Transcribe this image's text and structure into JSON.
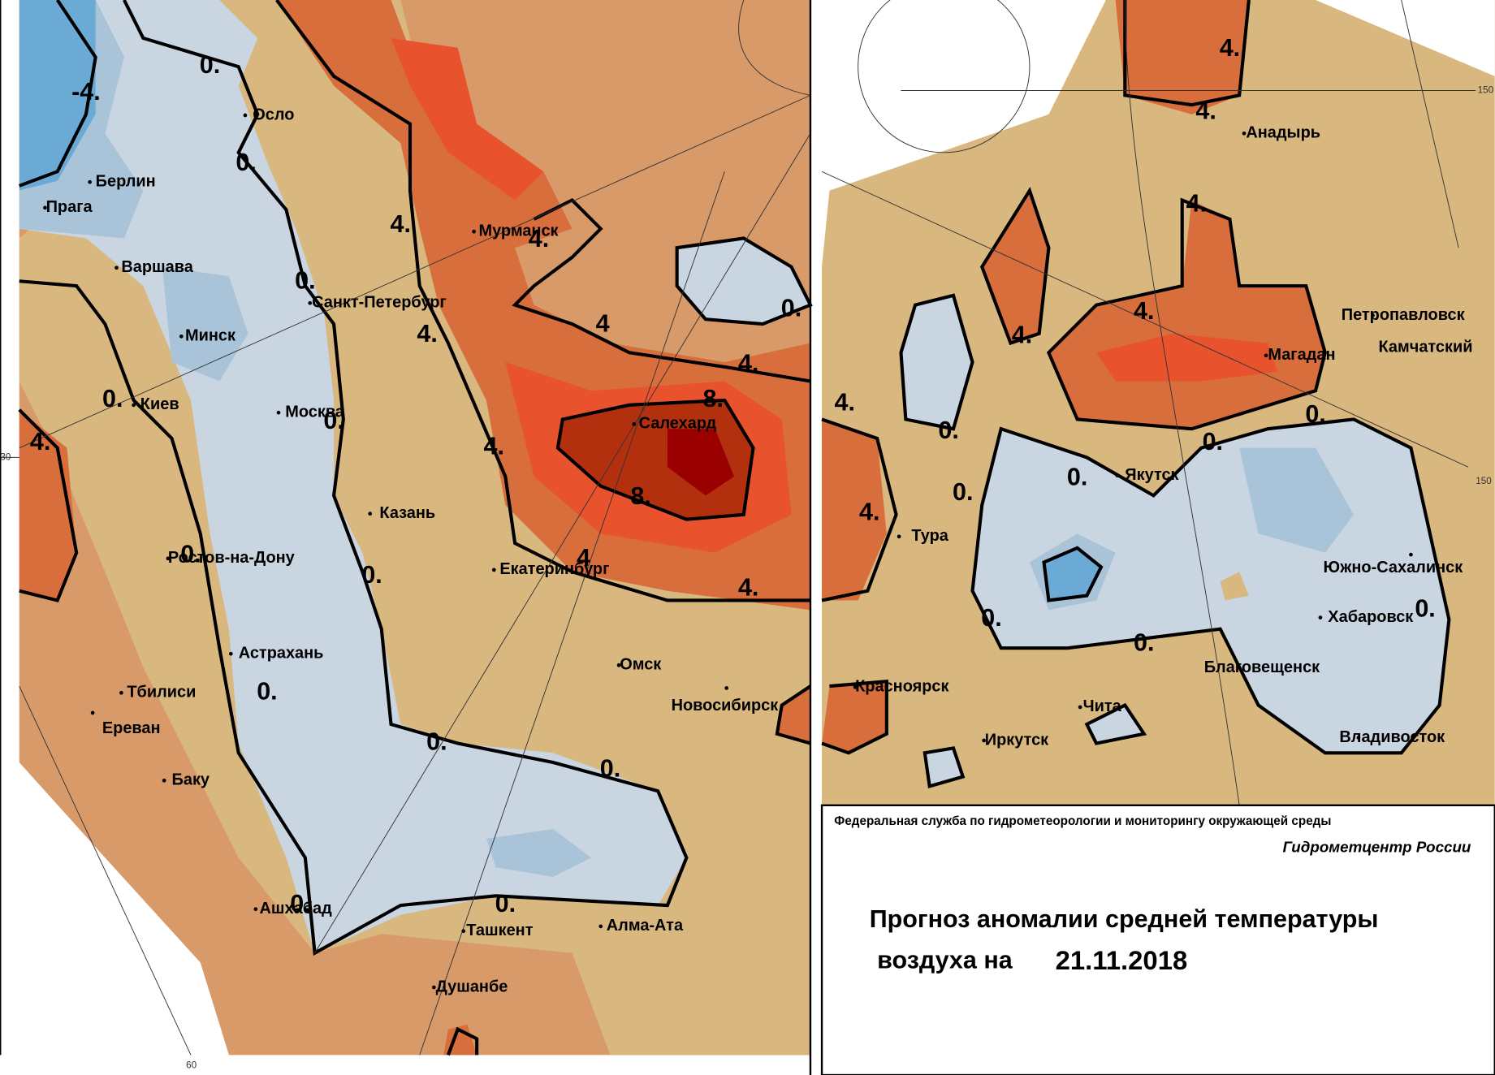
{
  "cities": [
    "Осло",
    "Берлин",
    "Прага",
    "Варшава",
    "Минск",
    "Киев",
    "Москва",
    "Санкт-Петербург",
    "Мурманск",
    "Салехард",
    "Казань",
    "Ростов-на-Дону",
    "Екатеринбург",
    "Омск",
    "Новосибирск",
    "Астрахань",
    "Тбилиси",
    "Ереван",
    "Баку",
    "Ашхабад",
    "Ташкент",
    "Алма-Ата",
    "Душанбе",
    "Анадырь",
    "Петропавловск",
    "Камчатский",
    "Магадан",
    "Якутск",
    "Тура",
    "Южно-Сахалинск",
    "Хабаровск",
    "Благовещенск",
    "Красноярск",
    "Чита",
    "Иркутск",
    "Владивосток"
  ],
  "contour_labels": [
    "-4.",
    "0.",
    "0.",
    "4.",
    "0.",
    "4.",
    "4.",
    "4",
    "4.",
    "0.",
    "8.",
    "8.",
    "0.",
    "0.",
    "4.",
    "4.",
    "0.",
    "4",
    "4.",
    "0.",
    "0.",
    "0.",
    "0.",
    "0.",
    "0.",
    "4.",
    "4.",
    "4.",
    "4.",
    "4.",
    "0.",
    "0.",
    "0.",
    "0.",
    "0.",
    "4.",
    "4.",
    "0.",
    "0.",
    "0."
  ],
  "axis_labels": [
    "30",
    "60",
    "150",
    "150"
  ],
  "footer": {
    "agency": "Федеральная служба по гидрометеорологии и мониторингу окружающей среды",
    "center": "Гидрометцентр России",
    "title_line1": "Прогноз аномалии средней температуры",
    "title_line2": "воздуха на",
    "date": "21.11.2018"
  }
}
